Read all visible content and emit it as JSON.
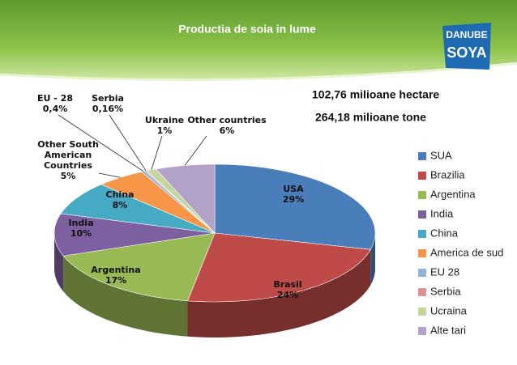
{
  "chart_data": {
    "type": "pie",
    "title": "Productia de soia in lume",
    "annotations": [
      "102,76 milioane hectare",
      "264,18 milioane tone"
    ],
    "categories": [
      "SUA",
      "Brazilia",
      "Argentina",
      "India",
      "China",
      "America de sud",
      "EU 28",
      "Serbia",
      "Ucraina",
      "Alte tari"
    ],
    "slice_labels": [
      "USA",
      "Brasil",
      "Argentina",
      "India",
      "China",
      "Other South American Countries",
      "EU - 28",
      "Serbia",
      "Ukraine",
      "Other countries"
    ],
    "values": [
      29,
      24,
      17,
      10,
      8,
      5,
      0.4,
      0.16,
      1,
      6
    ],
    "value_labels": [
      "29%",
      "24%",
      "17%",
      "10%",
      "8%",
      "5%",
      "0,4%",
      "0,16%",
      "1%",
      "6%"
    ],
    "colors": [
      "#4a7ebb",
      "#be4b48",
      "#98b954",
      "#7d60a0",
      "#46aac5",
      "#f79646",
      "#95b3d7",
      "#d99694",
      "#c3d69b",
      "#b3a2c7"
    ],
    "legend": "right"
  },
  "logo": {
    "line1": "DANUBE",
    "line2": "SOYA"
  }
}
